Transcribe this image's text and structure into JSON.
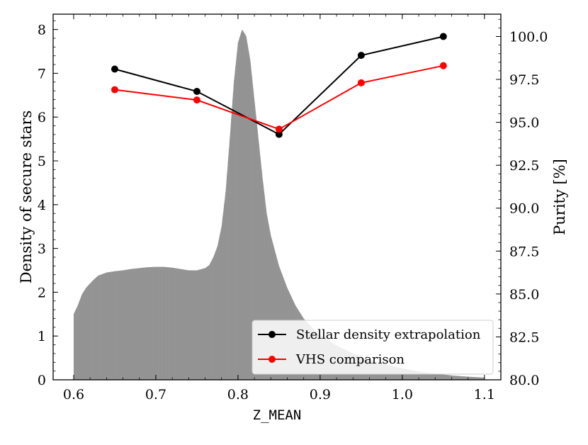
{
  "chart_data": {
    "type": "bar+line",
    "xlabel": "Z_MEAN",
    "ylabel_left": "Density of secure stars",
    "ylabel_right": "Purity [%]",
    "xlim": [
      0.575,
      1.12
    ],
    "ylim_left": [
      0,
      8.35
    ],
    "ylim_right": [
      80.0,
      101.3
    ],
    "x_ticks": [
      0.6,
      0.7,
      0.8,
      0.9,
      1.0,
      1.1
    ],
    "x_tick_labels": [
      "0.6",
      "0.7",
      "0.8",
      "0.9",
      "1.0",
      "1.1"
    ],
    "y_left_ticks": [
      0,
      1,
      2,
      3,
      4,
      5,
      6,
      7,
      8
    ],
    "y_left_tick_labels": [
      "0",
      "1",
      "2",
      "3",
      "4",
      "5",
      "6",
      "7",
      "8"
    ],
    "y_right_ticks": [
      80.0,
      82.5,
      85.0,
      87.5,
      90.0,
      92.5,
      95.0,
      97.5,
      100.0
    ],
    "y_right_tick_labels": [
      "80.0",
      "82.5",
      "85.0",
      "87.5",
      "90.0",
      "92.5",
      "95.0",
      "97.5",
      "100.0"
    ],
    "histogram": {
      "color": "#8c8c8c",
      "range": [
        0.6,
        1.1
      ],
      "shape_points": [
        [
          0.6,
          1.5
        ],
        [
          0.605,
          1.7
        ],
        [
          0.61,
          1.95
        ],
        [
          0.615,
          2.1
        ],
        [
          0.62,
          2.2
        ],
        [
          0.625,
          2.3
        ],
        [
          0.63,
          2.38
        ],
        [
          0.64,
          2.45
        ],
        [
          0.65,
          2.48
        ],
        [
          0.66,
          2.5
        ],
        [
          0.67,
          2.53
        ],
        [
          0.68,
          2.55
        ],
        [
          0.69,
          2.57
        ],
        [
          0.7,
          2.58
        ],
        [
          0.71,
          2.58
        ],
        [
          0.72,
          2.56
        ],
        [
          0.73,
          2.53
        ],
        [
          0.74,
          2.5
        ],
        [
          0.75,
          2.5
        ],
        [
          0.76,
          2.55
        ],
        [
          0.765,
          2.62
        ],
        [
          0.77,
          2.8
        ],
        [
          0.775,
          3.05
        ],
        [
          0.78,
          3.5
        ],
        [
          0.785,
          4.3
        ],
        [
          0.79,
          5.5
        ],
        [
          0.795,
          6.8
        ],
        [
          0.8,
          7.7
        ],
        [
          0.805,
          8.0
        ],
        [
          0.81,
          7.85
        ],
        [
          0.815,
          7.3
        ],
        [
          0.82,
          6.4
        ],
        [
          0.825,
          5.5
        ],
        [
          0.83,
          4.6
        ],
        [
          0.835,
          3.8
        ],
        [
          0.84,
          3.3
        ],
        [
          0.845,
          2.95
        ],
        [
          0.85,
          2.6
        ],
        [
          0.86,
          2.1
        ],
        [
          0.87,
          1.7
        ],
        [
          0.88,
          1.4
        ],
        [
          0.89,
          1.2
        ],
        [
          0.9,
          1.02
        ],
        [
          0.92,
          0.78
        ],
        [
          0.94,
          0.6
        ],
        [
          0.96,
          0.46
        ],
        [
          0.98,
          0.35
        ],
        [
          1.0,
          0.26
        ],
        [
          1.02,
          0.19
        ],
        [
          1.04,
          0.14
        ],
        [
          1.06,
          0.1
        ],
        [
          1.08,
          0.07
        ],
        [
          1.1,
          0.05
        ]
      ]
    },
    "series": [
      {
        "name": "Stellar density extrapolation",
        "color": "#000000",
        "axis": "right",
        "x": [
          0.65,
          0.75,
          0.85,
          0.95,
          1.05
        ],
        "y": [
          98.1,
          96.8,
          94.3,
          98.9,
          100.0
        ]
      },
      {
        "name": "VHS comparison",
        "color": "#ff0000",
        "axis": "right",
        "x": [
          0.65,
          0.75,
          0.85,
          0.95,
          1.05
        ],
        "y": [
          96.9,
          96.3,
          94.6,
          97.3,
          98.3
        ]
      }
    ],
    "legend": {
      "location": "bottom-right"
    },
    "grid": false
  }
}
